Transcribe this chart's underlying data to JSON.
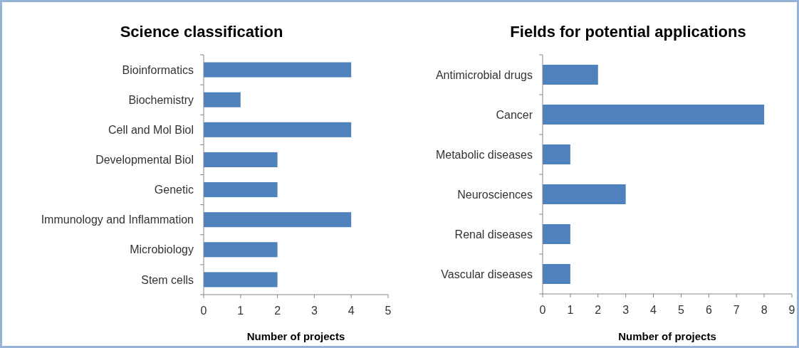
{
  "chart_data": [
    {
      "type": "bar",
      "orientation": "horizontal",
      "title": "Science classification",
      "xlabel": "Number of projects",
      "categories": [
        "Bioinformatics",
        "Biochemistry",
        "Cell and Mol Biol",
        "Developmental Biol",
        "Genetic",
        "Immunology and Inflammation",
        "Microbiology",
        "Stem cells"
      ],
      "values": [
        4,
        1,
        4,
        2,
        2,
        4,
        2,
        2
      ],
      "color": "#4f81bd",
      "xlim": [
        0,
        5
      ],
      "xticks": [
        0,
        1,
        2,
        3,
        4,
        5
      ],
      "grid": false
    },
    {
      "type": "bar",
      "orientation": "horizontal",
      "title": "Fields for potential applications",
      "xlabel": "Number of projects",
      "categories": [
        "Antimicrobial drugs",
        "Cancer",
        "Metabolic diseases",
        "Neurosciences",
        "Renal diseases",
        "Vascular diseases"
      ],
      "values": [
        2,
        8,
        1,
        3,
        1,
        1
      ],
      "color": "#4f81bd",
      "xlim": [
        0,
        9
      ],
      "xticks": [
        0,
        1,
        2,
        3,
        4,
        5,
        6,
        7,
        8,
        9
      ],
      "grid": false
    }
  ]
}
